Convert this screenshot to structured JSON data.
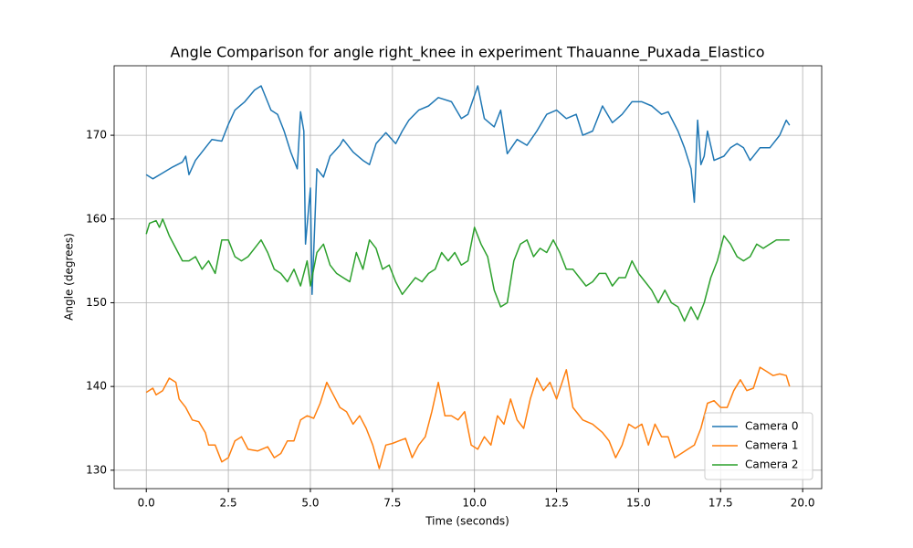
{
  "chart_data": {
    "type": "line",
    "title": "Angle Comparison for angle right_knee in experiment Thauanne_Puxada_Elastico",
    "xlabel": "Time (seconds)",
    "ylabel": "Angle (degrees)",
    "grid": true,
    "legend": "lower right",
    "xlim": [
      -0.98,
      20.58
    ],
    "ylim": [
      127.8,
      178.3
    ],
    "xticks": [
      {
        "value": 0,
        "label": "0.0"
      },
      2.5,
      {
        "value": 5,
        "label": "5.0"
      },
      7.5,
      {
        "value": 10,
        "label": "10.0"
      },
      12.5,
      {
        "value": 15,
        "label": "15.0"
      },
      17.5,
      {
        "value": 20,
        "label": "20.0"
      }
    ],
    "yticks": [
      130,
      140,
      150,
      160,
      170
    ],
    "series": [
      {
        "name": "Camera 0",
        "color": "#1f77b4",
        "x": [
          0,
          0.2,
          0.5,
          0.8,
          1.1,
          1.2,
          1.3,
          1.5,
          1.8,
          2.0,
          2.3,
          2.5,
          2.7,
          3.0,
          3.3,
          3.5,
          3.8,
          4.0,
          4.2,
          4.4,
          4.6,
          4.7,
          4.8,
          4.85,
          5.0,
          5.05,
          5.2,
          5.4,
          5.6,
          5.9,
          6.0,
          6.3,
          6.6,
          6.8,
          7.0,
          7.3,
          7.6,
          7.8,
          8.0,
          8.3,
          8.6,
          8.9,
          9.3,
          9.6,
          9.8,
          10.1,
          10.3,
          10.6,
          10.8,
          11.0,
          11.3,
          11.6,
          11.9,
          12.2,
          12.5,
          12.8,
          13.1,
          13.3,
          13.6,
          13.9,
          14.2,
          14.5,
          14.8,
          15.1,
          15.4,
          15.7,
          15.9,
          16.2,
          16.4,
          16.6,
          16.7,
          16.8,
          16.9,
          17.0,
          17.1,
          17.3,
          17.6,
          17.8,
          18.0,
          18.2,
          18.4,
          18.7,
          19.0,
          19.3,
          19.5,
          19.6
        ],
        "values": [
          165.3,
          164.8,
          165.5,
          166.2,
          166.8,
          167.5,
          165.3,
          167,
          168.5,
          169.5,
          169.3,
          171.3,
          173,
          174,
          175.4,
          175.9,
          173,
          172.5,
          170.5,
          168,
          166,
          172.8,
          170.5,
          157,
          163.7,
          151,
          166,
          165,
          167.5,
          168.8,
          169.5,
          168,
          167,
          166.5,
          169,
          170.3,
          169,
          170.5,
          171.8,
          173,
          173.5,
          174.5,
          174,
          172,
          172.5,
          175.9,
          172,
          171,
          173,
          167.8,
          169.5,
          168.8,
          170.5,
          172.5,
          173,
          172,
          172.5,
          170,
          170.5,
          173.5,
          171.5,
          172.5,
          174,
          174,
          173.5,
          172.5,
          172.8,
          170.5,
          168.5,
          166,
          162,
          171.8,
          166.5,
          167.5,
          170.5,
          167,
          167.5,
          168.5,
          169,
          168.5,
          167,
          168.5,
          168.5,
          170,
          171.8,
          171.2
        ]
      },
      {
        "name": "Camera 1",
        "color": "#ff7f0e",
        "x": [
          0,
          0.2,
          0.3,
          0.5,
          0.7,
          0.9,
          1.0,
          1.2,
          1.4,
          1.6,
          1.8,
          1.9,
          2.1,
          2.3,
          2.5,
          2.7,
          2.9,
          3.1,
          3.4,
          3.7,
          3.9,
          4.1,
          4.3,
          4.5,
          4.7,
          4.9,
          5.1,
          5.3,
          5.5,
          5.7,
          5.9,
          6.1,
          6.3,
          6.5,
          6.7,
          6.9,
          7.1,
          7.3,
          7.5,
          7.7,
          7.9,
          8.1,
          8.3,
          8.5,
          8.7,
          8.9,
          9.1,
          9.3,
          9.5,
          9.7,
          9.9,
          10.1,
          10.3,
          10.5,
          10.7,
          10.9,
          11.1,
          11.3,
          11.5,
          11.7,
          11.9,
          12.1,
          12.3,
          12.5,
          12.8,
          13.0,
          13.3,
          13.6,
          13.9,
          14.1,
          14.3,
          14.5,
          14.7,
          14.9,
          15.1,
          15.3,
          15.5,
          15.7,
          15.9,
          16.1,
          16.3,
          16.5,
          16.7,
          16.9,
          17.1,
          17.3,
          17.5,
          17.7,
          17.9,
          18.1,
          18.3,
          18.5,
          18.7,
          18.9,
          19.1,
          19.3,
          19.5,
          19.6
        ],
        "values": [
          139.3,
          139.8,
          139,
          139.5,
          141,
          140.5,
          138.5,
          137.5,
          136,
          135.8,
          134.5,
          133,
          133,
          131,
          131.5,
          133.5,
          134,
          132.5,
          132.3,
          132.8,
          131.5,
          132,
          133.5,
          133.5,
          136,
          136.5,
          136.2,
          138,
          140.5,
          139,
          137.5,
          137,
          135.5,
          136.5,
          135,
          133,
          130.2,
          133,
          133.2,
          133.5,
          133.8,
          131.5,
          133,
          134,
          137,
          140.5,
          136.5,
          136.5,
          136,
          137,
          133,
          132.5,
          134,
          133,
          136.5,
          135.5,
          138.5,
          136,
          135,
          138.5,
          141,
          139.5,
          140.5,
          138.5,
          142,
          137.5,
          136,
          135.5,
          134.5,
          133.5,
          131.5,
          133,
          135.5,
          135,
          135.5,
          133,
          135.5,
          134,
          134,
          131.5,
          132,
          132.5,
          133,
          135,
          138,
          138.3,
          137.5,
          137.5,
          139.5,
          140.8,
          139.5,
          139.8,
          142.3,
          141.8,
          141.3,
          141.5,
          141.3,
          140
        ]
      },
      {
        "name": "Camera 2",
        "color": "#2ca02c",
        "x": [
          0,
          0.1,
          0.3,
          0.4,
          0.5,
          0.7,
          0.9,
          1.1,
          1.3,
          1.5,
          1.7,
          1.9,
          2.1,
          2.3,
          2.5,
          2.7,
          2.9,
          3.1,
          3.3,
          3.5,
          3.7,
          3.9,
          4.1,
          4.3,
          4.5,
          4.7,
          4.9,
          5.0,
          5.2,
          5.4,
          5.6,
          5.8,
          6.0,
          6.2,
          6.4,
          6.6,
          6.8,
          7.0,
          7.2,
          7.4,
          7.6,
          7.8,
          8.0,
          8.2,
          8.4,
          8.6,
          8.8,
          9.0,
          9.2,
          9.4,
          9.6,
          9.8,
          10.0,
          10.2,
          10.4,
          10.6,
          10.8,
          11.0,
          11.2,
          11.4,
          11.6,
          11.8,
          12.0,
          12.2,
          12.4,
          12.6,
          12.8,
          13.0,
          13.2,
          13.4,
          13.6,
          13.8,
          14.0,
          14.2,
          14.4,
          14.6,
          14.8,
          15.0,
          15.2,
          15.4,
          15.6,
          15.8,
          16.0,
          16.2,
          16.4,
          16.6,
          16.8,
          17.0,
          17.2,
          17.4,
          17.6,
          17.8,
          18.0,
          18.2,
          18.4,
          18.6,
          18.8,
          19.0,
          19.2,
          19.4,
          19.6
        ],
        "values": [
          158.2,
          159.5,
          159.8,
          159,
          160,
          158,
          156.5,
          155,
          155,
          155.5,
          154,
          155,
          153.5,
          157.5,
          157.5,
          155.5,
          155,
          155.5,
          156.5,
          157.5,
          156,
          154,
          153.5,
          152.5,
          154,
          152,
          155,
          152,
          156,
          157,
          154.5,
          153.5,
          153,
          152.5,
          156,
          154,
          157.5,
          156.5,
          154,
          154.5,
          152.5,
          151,
          152,
          153,
          152.5,
          153.5,
          154,
          156,
          155,
          156,
          154.5,
          155,
          159,
          157,
          155.5,
          151.5,
          149.5,
          150,
          155,
          157,
          157.5,
          155.5,
          156.5,
          156,
          157.5,
          156,
          154,
          154,
          153,
          152,
          152.5,
          153.5,
          153.5,
          152,
          153,
          153,
          155,
          153.5,
          152.5,
          151.5,
          150,
          151.5,
          150,
          149.5,
          147.8,
          149.5,
          148,
          150,
          153,
          155,
          158,
          157,
          155.5,
          155,
          155.5,
          157,
          156.5,
          157,
          157.5,
          157.5,
          157.5
        ]
      }
    ]
  }
}
